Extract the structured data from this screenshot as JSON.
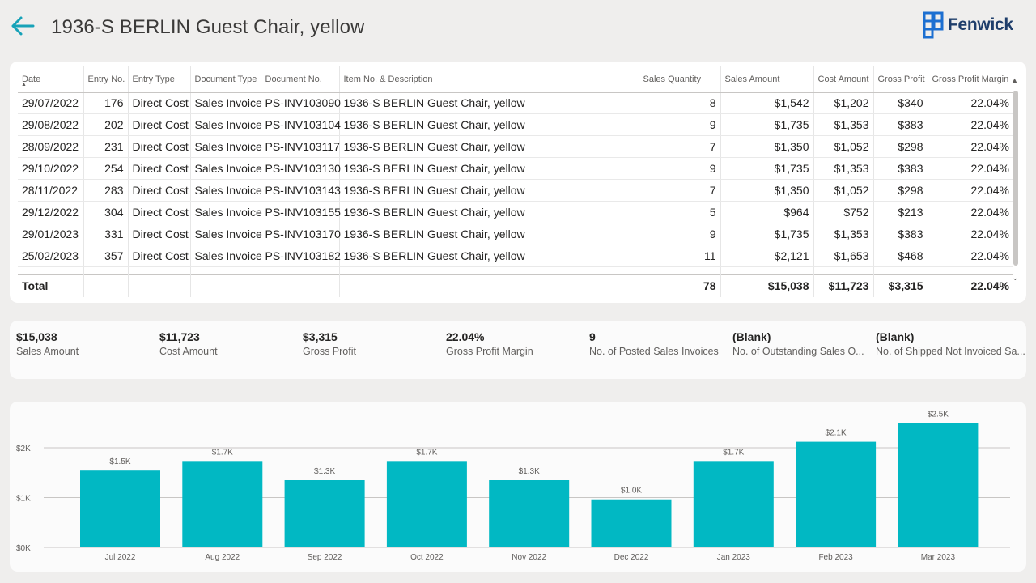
{
  "header": {
    "title": "1936-S BERLIN Guest Chair, yellow",
    "brand": "Fenwick"
  },
  "colors": {
    "accent": "#01b8c3",
    "brand": "#1f3e6b",
    "back_arrow": "#17a2b8"
  },
  "icons": {
    "back": "arrow-left-icon",
    "brand_logo": "fenwick-logo-icon",
    "sort": "sort-ascending-icon",
    "scroll_up": "chevron-up-icon",
    "scroll_down": "chevron-down-icon"
  },
  "table": {
    "columns": [
      "Date",
      "Entry No.",
      "Entry Type",
      "Document Type",
      "Document No.",
      "Item No. & Description",
      "Sales Quantity",
      "Sales Amount",
      "Cost Amount",
      "Gross Profit",
      "Gross Profit Margin"
    ],
    "rows": [
      [
        "29/07/2022",
        "176",
        "Direct Cost",
        "Sales Invoice",
        "PS-INV103090",
        "1936-S BERLIN Guest Chair, yellow",
        "8",
        "$1,542",
        "$1,202",
        "$340",
        "22.04%"
      ],
      [
        "29/08/2022",
        "202",
        "Direct Cost",
        "Sales Invoice",
        "PS-INV103104",
        "1936-S BERLIN Guest Chair, yellow",
        "9",
        "$1,735",
        "$1,353",
        "$383",
        "22.04%"
      ],
      [
        "28/09/2022",
        "231",
        "Direct Cost",
        "Sales Invoice",
        "PS-INV103117",
        "1936-S BERLIN Guest Chair, yellow",
        "7",
        "$1,350",
        "$1,052",
        "$298",
        "22.04%"
      ],
      [
        "29/10/2022",
        "254",
        "Direct Cost",
        "Sales Invoice",
        "PS-INV103130",
        "1936-S BERLIN Guest Chair, yellow",
        "9",
        "$1,735",
        "$1,353",
        "$383",
        "22.04%"
      ],
      [
        "28/11/2022",
        "283",
        "Direct Cost",
        "Sales Invoice",
        "PS-INV103143",
        "1936-S BERLIN Guest Chair, yellow",
        "7",
        "$1,350",
        "$1,052",
        "$298",
        "22.04%"
      ],
      [
        "29/12/2022",
        "304",
        "Direct Cost",
        "Sales Invoice",
        "PS-INV103155",
        "1936-S BERLIN Guest Chair, yellow",
        "5",
        "$964",
        "$752",
        "$213",
        "22.04%"
      ],
      [
        "29/01/2023",
        "331",
        "Direct Cost",
        "Sales Invoice",
        "PS-INV103170",
        "1936-S BERLIN Guest Chair, yellow",
        "9",
        "$1,735",
        "$1,353",
        "$383",
        "22.04%"
      ],
      [
        "25/02/2023",
        "357",
        "Direct Cost",
        "Sales Invoice",
        "PS-INV103182",
        "1936-S BERLIN Guest Chair, yellow",
        "11",
        "$2,121",
        "$1,653",
        "$468",
        "22.04%"
      ]
    ],
    "total": {
      "label": "Total",
      "sales_quantity": "78",
      "sales_amount": "$15,038",
      "cost_amount": "$11,723",
      "gross_profit": "$3,315",
      "gross_profit_margin": "22.04%"
    }
  },
  "kpis": [
    {
      "value": "$15,038",
      "label": "Sales Amount"
    },
    {
      "value": "$11,723",
      "label": "Cost Amount"
    },
    {
      "value": "$3,315",
      "label": "Gross Profit"
    },
    {
      "value": "22.04%",
      "label": "Gross Profit Margin"
    },
    {
      "value": "9",
      "label": "No. of Posted Sales Invoices"
    },
    {
      "value": "(Blank)",
      "label": "No. of Outstanding Sales O..."
    },
    {
      "value": "(Blank)",
      "label": "No. of Shipped Not Invoiced Sa..."
    }
  ],
  "chart_data": {
    "type": "bar",
    "categories": [
      "Jul 2022",
      "Aug 2022",
      "Sep 2022",
      "Oct 2022",
      "Nov 2022",
      "Dec 2022",
      "Jan 2023",
      "Feb 2023",
      "Mar 2023"
    ],
    "values": [
      1542,
      1735,
      1350,
      1735,
      1350,
      964,
      1735,
      2121,
      2500
    ],
    "data_labels": [
      "$1.5K",
      "$1.7K",
      "$1.3K",
      "$1.7K",
      "$1.3K",
      "$1.0K",
      "$1.7K",
      "$2.1K",
      "$2.5K"
    ],
    "y_ticks": [
      {
        "value": 0,
        "label": "$0K"
      },
      {
        "value": 1000,
        "label": "$1K"
      },
      {
        "value": 2000,
        "label": "$2K"
      }
    ],
    "ylim": [
      0,
      2700
    ],
    "grid": true,
    "bar_color": "#01b8c3"
  }
}
